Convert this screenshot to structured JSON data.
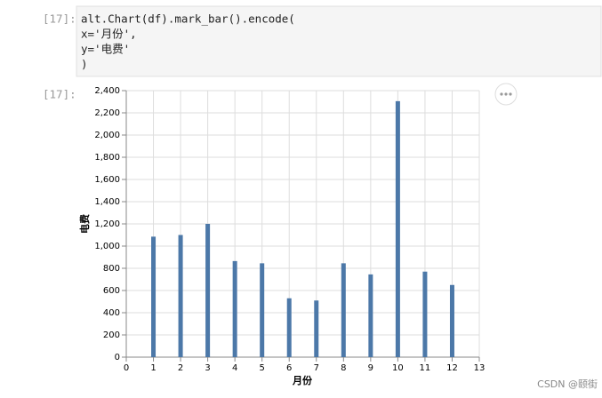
{
  "notebook": {
    "input_prompt": "[17]:",
    "code": [
      "alt.Chart(df).mark_bar().encode(",
      "x='月份',",
      "y='电费'",
      ")"
    ],
    "output_prompt": "[17]:",
    "watermark": "CSDN @颐街"
  },
  "chart_data": {
    "type": "bar",
    "x_label": "月份",
    "y_label": "电费",
    "x": [
      1,
      2,
      3,
      4,
      5,
      6,
      7,
      8,
      9,
      10,
      11,
      12
    ],
    "values": [
      1085,
      1100,
      1200,
      865,
      845,
      530,
      510,
      845,
      745,
      2305,
      770,
      650
    ],
    "color": "#4c78a8",
    "xlim": [
      0,
      13
    ],
    "xticks": [
      0,
      1,
      2,
      3,
      4,
      5,
      6,
      7,
      8,
      9,
      10,
      11,
      12,
      13
    ],
    "ylim": [
      0,
      2400
    ],
    "yticks": [
      0,
      200,
      400,
      600,
      800,
      {
        "value": 1000,
        "label": "1,000"
      },
      {
        "value": 1200,
        "label": "1,200"
      },
      {
        "value": 1400,
        "label": "1,400"
      },
      {
        "value": 1600,
        "label": "1,600"
      },
      {
        "value": 1800,
        "label": "1,800"
      },
      {
        "value": 2000,
        "label": "2,000"
      },
      {
        "value": 2200,
        "label": "2,200"
      },
      {
        "value": 2400,
        "label": "2,400"
      }
    ],
    "grid": true
  }
}
